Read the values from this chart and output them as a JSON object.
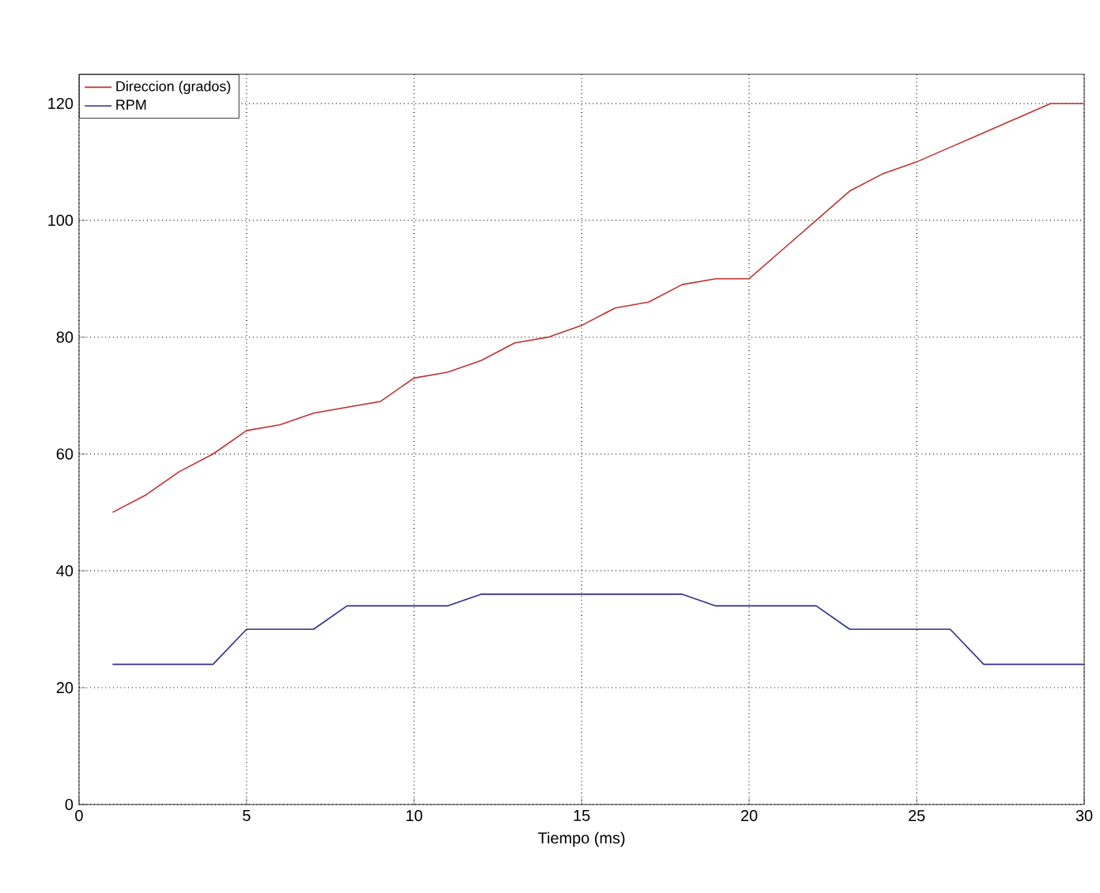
{
  "chart_data": {
    "type": "line",
    "xlabel": "Tiempo (ms)",
    "x": [
      1,
      2,
      3,
      4,
      5,
      6,
      7,
      8,
      9,
      10,
      11,
      12,
      13,
      14,
      15,
      16,
      17,
      18,
      19,
      20,
      21,
      22,
      23,
      24,
      25,
      26,
      27,
      28,
      29,
      30
    ],
    "series": [
      {
        "name": "Direccion (grados)",
        "color": "#c0302f",
        "values": [
          50,
          53,
          57,
          60,
          64,
          65,
          67,
          68,
          69,
          73,
          74,
          76,
          79,
          80,
          82,
          85,
          86,
          89,
          90,
          90,
          95,
          100,
          105,
          108,
          110,
          112.5,
          115,
          117.5,
          120,
          120
        ]
      },
      {
        "name": "RPM",
        "color": "#2b2f8a",
        "values": [
          24,
          24,
          24,
          24,
          30,
          30,
          30,
          34,
          34,
          34,
          34,
          36,
          36,
          36,
          36,
          36,
          36,
          36,
          34,
          34,
          34,
          34,
          30,
          30,
          30,
          30,
          24,
          24,
          24,
          24
        ]
      }
    ],
    "xlim": [
      0,
      30
    ],
    "xticks": [
      0,
      5,
      10,
      15,
      20,
      25,
      30
    ],
    "ylim": [
      0,
      125
    ],
    "yticks": [
      0,
      20,
      40,
      60,
      80,
      100,
      120
    ],
    "grid": true,
    "legend": "top left",
    "line_style": "solid"
  }
}
